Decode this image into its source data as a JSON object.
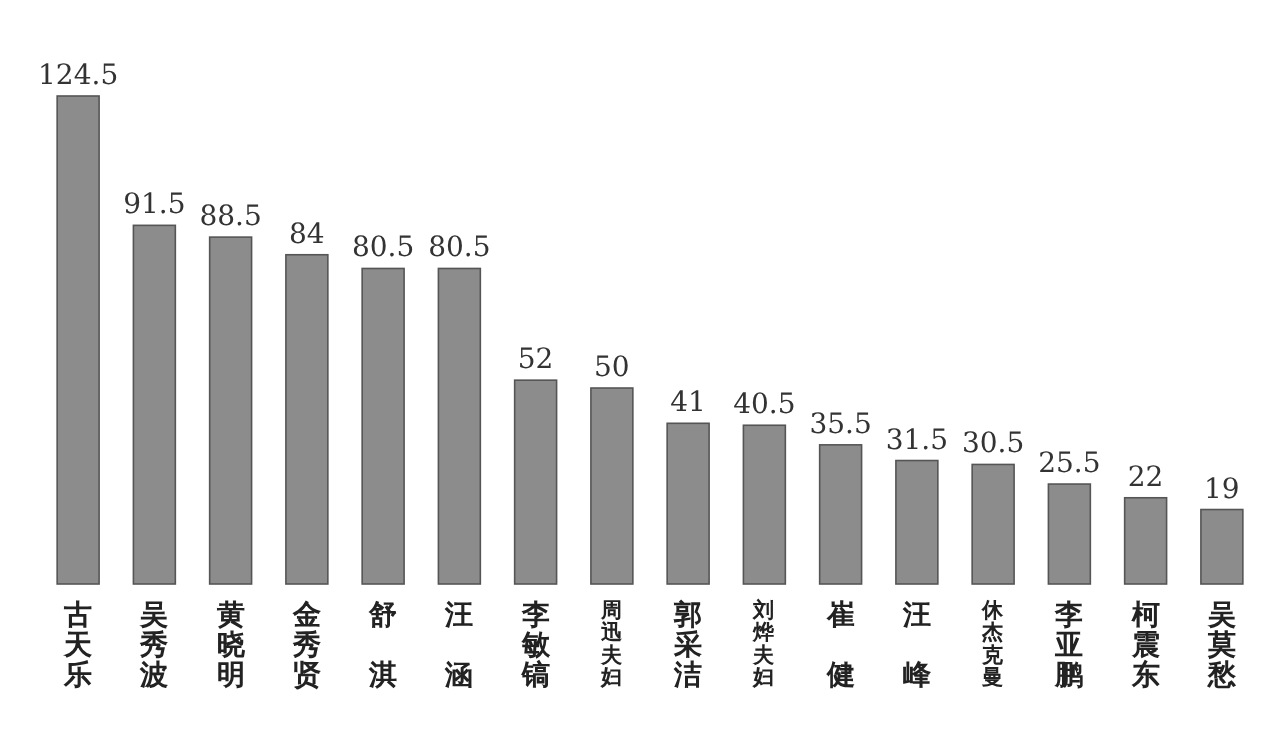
{
  "chart_data": {
    "type": "bar",
    "categories": [
      "古天乐",
      "吴秀波",
      "黄晓明",
      "金秀贤",
      "舒淇",
      "汪涵",
      "李敏镐",
      "周迅夫妇",
      "郭采洁",
      "刘烨夫妇",
      "崔健",
      "汪峰",
      "休杰克曼",
      "李亚鹏",
      "柯震东",
      "吴莫愁"
    ],
    "values": [
      124.5,
      91.5,
      88.5,
      84,
      80.5,
      80.5,
      52,
      50,
      41,
      40.5,
      35.5,
      31.5,
      30.5,
      25.5,
      22,
      19
    ],
    "color": "#8c8c8c",
    "data_labels": true
  }
}
